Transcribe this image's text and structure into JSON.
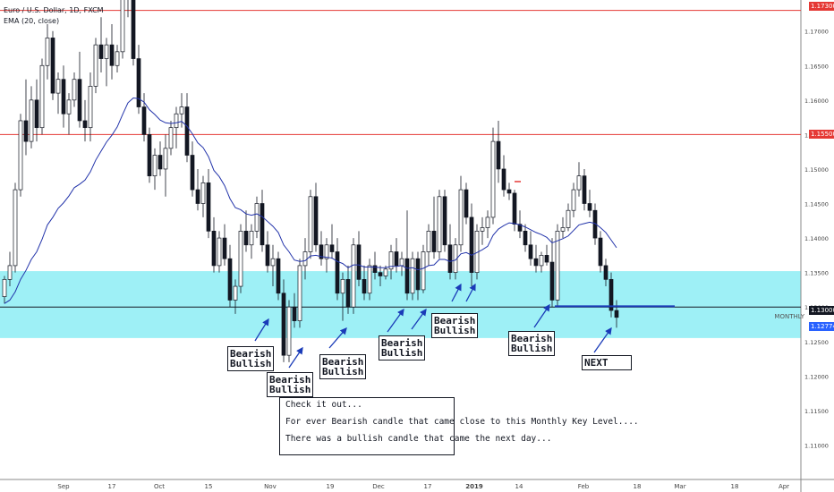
{
  "chart_data": {
    "type": "candlestick",
    "title": "Euro / U.S. Dollar, 1D, FXCM",
    "indicator_label": "EMA (20, close)",
    "level_label": "MONTHLY",
    "ylim": [
      1.105,
      1.1745
    ],
    "y_ticks": [
      "1.17000",
      "1.16500",
      "1.16000",
      "1.15500",
      "1.15000",
      "1.14500",
      "1.14000",
      "1.13500",
      "1.13000",
      "1.12500",
      "1.12000",
      "1.11500",
      "1.11000"
    ],
    "x_ticks": [
      "Sep",
      "17",
      "Oct",
      "15",
      "Nov",
      "19",
      "Dec",
      "17",
      "2019",
      "14",
      "Feb",
      "18",
      "Mar",
      "18",
      "Apr"
    ],
    "tags": [
      "1.17300",
      "1.15500",
      "1.13000",
      "1.12774"
    ],
    "horizontal_levels": [
      {
        "name": "upper-resistance",
        "value": 1.173,
        "color": "#e53935"
      },
      {
        "name": "mid-resistance",
        "value": 1.155,
        "color": "#e53935"
      },
      {
        "name": "monthly",
        "value": 1.13,
        "color": "#131722"
      }
    ],
    "zone": {
      "low": 1.1255,
      "high": 1.1352,
      "color": "#5ee6f0"
    },
    "colors": {
      "bull": "#ffffff",
      "bear": "#131722",
      "ema": "#2233aa",
      "arrow": "#1a3bb8"
    },
    "candles": [
      {
        "o": 1.1315,
        "h": 1.1345,
        "l": 1.1305,
        "c": 1.134
      },
      {
        "o": 1.134,
        "h": 1.138,
        "l": 1.133,
        "c": 1.136
      },
      {
        "o": 1.136,
        "h": 1.148,
        "l": 1.135,
        "c": 1.147
      },
      {
        "o": 1.147,
        "h": 1.158,
        "l": 1.146,
        "c": 1.157
      },
      {
        "o": 1.157,
        "h": 1.163,
        "l": 1.152,
        "c": 1.154
      },
      {
        "o": 1.154,
        "h": 1.162,
        "l": 1.153,
        "c": 1.16
      },
      {
        "o": 1.16,
        "h": 1.163,
        "l": 1.154,
        "c": 1.156
      },
      {
        "o": 1.156,
        "h": 1.166,
        "l": 1.155,
        "c": 1.165
      },
      {
        "o": 1.165,
        "h": 1.171,
        "l": 1.163,
        "c": 1.169
      },
      {
        "o": 1.169,
        "h": 1.17,
        "l": 1.16,
        "c": 1.161
      },
      {
        "o": 1.161,
        "h": 1.164,
        "l": 1.158,
        "c": 1.163
      },
      {
        "o": 1.163,
        "h": 1.165,
        "l": 1.156,
        "c": 1.158
      },
      {
        "o": 1.158,
        "h": 1.161,
        "l": 1.155,
        "c": 1.16
      },
      {
        "o": 1.16,
        "h": 1.164,
        "l": 1.159,
        "c": 1.163
      },
      {
        "o": 1.163,
        "h": 1.167,
        "l": 1.156,
        "c": 1.157
      },
      {
        "o": 1.157,
        "h": 1.16,
        "l": 1.154,
        "c": 1.156
      },
      {
        "o": 1.156,
        "h": 1.164,
        "l": 1.154,
        "c": 1.162
      },
      {
        "o": 1.162,
        "h": 1.169,
        "l": 1.161,
        "c": 1.168
      },
      {
        "o": 1.168,
        "h": 1.172,
        "l": 1.164,
        "c": 1.166
      },
      {
        "o": 1.166,
        "h": 1.169,
        "l": 1.162,
        "c": 1.168
      },
      {
        "o": 1.168,
        "h": 1.171,
        "l": 1.163,
        "c": 1.165
      },
      {
        "o": 1.165,
        "h": 1.168,
        "l": 1.164,
        "c": 1.167
      },
      {
        "o": 1.167,
        "h": 1.176,
        "l": 1.166,
        "c": 1.175
      },
      {
        "o": 1.175,
        "h": 1.18,
        "l": 1.172,
        "c": 1.176
      },
      {
        "o": 1.176,
        "h": 1.177,
        "l": 1.165,
        "c": 1.166
      },
      {
        "o": 1.166,
        "h": 1.168,
        "l": 1.158,
        "c": 1.159
      },
      {
        "o": 1.159,
        "h": 1.161,
        "l": 1.154,
        "c": 1.155
      },
      {
        "o": 1.155,
        "h": 1.156,
        "l": 1.148,
        "c": 1.149
      },
      {
        "o": 1.149,
        "h": 1.153,
        "l": 1.147,
        "c": 1.152
      },
      {
        "o": 1.152,
        "h": 1.154,
        "l": 1.149,
        "c": 1.15
      },
      {
        "o": 1.15,
        "h": 1.155,
        "l": 1.146,
        "c": 1.153
      },
      {
        "o": 1.153,
        "h": 1.157,
        "l": 1.152,
        "c": 1.156
      },
      {
        "o": 1.156,
        "h": 1.159,
        "l": 1.153,
        "c": 1.158
      },
      {
        "o": 1.158,
        "h": 1.161,
        "l": 1.156,
        "c": 1.159
      },
      {
        "o": 1.159,
        "h": 1.161,
        "l": 1.151,
        "c": 1.152
      },
      {
        "o": 1.152,
        "h": 1.154,
        "l": 1.146,
        "c": 1.147
      },
      {
        "o": 1.147,
        "h": 1.15,
        "l": 1.144,
        "c": 1.145
      },
      {
        "o": 1.145,
        "h": 1.149,
        "l": 1.143,
        "c": 1.148
      },
      {
        "o": 1.148,
        "h": 1.15,
        "l": 1.14,
        "c": 1.141
      },
      {
        "o": 1.141,
        "h": 1.143,
        "l": 1.135,
        "c": 1.136
      },
      {
        "o": 1.136,
        "h": 1.141,
        "l": 1.135,
        "c": 1.14
      },
      {
        "o": 1.14,
        "h": 1.142,
        "l": 1.136,
        "c": 1.137
      },
      {
        "o": 1.137,
        "h": 1.139,
        "l": 1.13,
        "c": 1.131
      },
      {
        "o": 1.131,
        "h": 1.134,
        "l": 1.129,
        "c": 1.133
      },
      {
        "o": 1.133,
        "h": 1.142,
        "l": 1.132,
        "c": 1.141
      },
      {
        "o": 1.141,
        "h": 1.144,
        "l": 1.138,
        "c": 1.139
      },
      {
        "o": 1.139,
        "h": 1.142,
        "l": 1.137,
        "c": 1.141
      },
      {
        "o": 1.141,
        "h": 1.146,
        "l": 1.14,
        "c": 1.145
      },
      {
        "o": 1.145,
        "h": 1.147,
        "l": 1.138,
        "c": 1.139
      },
      {
        "o": 1.139,
        "h": 1.141,
        "l": 1.135,
        "c": 1.136
      },
      {
        "o": 1.136,
        "h": 1.139,
        "l": 1.133,
        "c": 1.137
      },
      {
        "o": 1.137,
        "h": 1.138,
        "l": 1.131,
        "c": 1.132
      },
      {
        "o": 1.132,
        "h": 1.134,
        "l": 1.122,
        "c": 1.123
      },
      {
        "o": 1.123,
        "h": 1.131,
        "l": 1.122,
        "c": 1.13
      },
      {
        "o": 1.13,
        "h": 1.132,
        "l": 1.127,
        "c": 1.128
      },
      {
        "o": 1.128,
        "h": 1.137,
        "l": 1.127,
        "c": 1.136
      },
      {
        "o": 1.136,
        "h": 1.14,
        "l": 1.134,
        "c": 1.138
      },
      {
        "o": 1.138,
        "h": 1.147,
        "l": 1.137,
        "c": 1.146
      },
      {
        "o": 1.146,
        "h": 1.148,
        "l": 1.138,
        "c": 1.139
      },
      {
        "o": 1.139,
        "h": 1.141,
        "l": 1.136,
        "c": 1.137
      },
      {
        "o": 1.137,
        "h": 1.14,
        "l": 1.135,
        "c": 1.139
      },
      {
        "o": 1.139,
        "h": 1.142,
        "l": 1.137,
        "c": 1.138
      },
      {
        "o": 1.138,
        "h": 1.14,
        "l": 1.131,
        "c": 1.132
      },
      {
        "o": 1.132,
        "h": 1.135,
        "l": 1.128,
        "c": 1.134
      },
      {
        "o": 1.134,
        "h": 1.136,
        "l": 1.129,
        "c": 1.13
      },
      {
        "o": 1.13,
        "h": 1.14,
        "l": 1.129,
        "c": 1.139
      },
      {
        "o": 1.139,
        "h": 1.141,
        "l": 1.133,
        "c": 1.134
      },
      {
        "o": 1.134,
        "h": 1.136,
        "l": 1.131,
        "c": 1.132
      },
      {
        "o": 1.132,
        "h": 1.137,
        "l": 1.131,
        "c": 1.136
      },
      {
        "o": 1.136,
        "h": 1.138,
        "l": 1.134,
        "c": 1.135
      },
      {
        "o": 1.135,
        "h": 1.136,
        "l": 1.133,
        "c": 1.1345
      },
      {
        "o": 1.1345,
        "h": 1.136,
        "l": 1.134,
        "c": 1.1355
      },
      {
        "o": 1.1355,
        "h": 1.139,
        "l": 1.134,
        "c": 1.138
      },
      {
        "o": 1.138,
        "h": 1.14,
        "l": 1.135,
        "c": 1.136
      },
      {
        "o": 1.136,
        "h": 1.138,
        "l": 1.1345,
        "c": 1.137
      },
      {
        "o": 1.137,
        "h": 1.144,
        "l": 1.131,
        "c": 1.132
      },
      {
        "o": 1.132,
        "h": 1.138,
        "l": 1.131,
        "c": 1.137
      },
      {
        "o": 1.137,
        "h": 1.138,
        "l": 1.131,
        "c": 1.1325
      },
      {
        "o": 1.1325,
        "h": 1.139,
        "l": 1.132,
        "c": 1.138
      },
      {
        "o": 1.138,
        "h": 1.142,
        "l": 1.136,
        "c": 1.141
      },
      {
        "o": 1.141,
        "h": 1.146,
        "l": 1.137,
        "c": 1.138
      },
      {
        "o": 1.138,
        "h": 1.147,
        "l": 1.137,
        "c": 1.146
      },
      {
        "o": 1.146,
        "h": 1.147,
        "l": 1.138,
        "c": 1.139
      },
      {
        "o": 1.139,
        "h": 1.142,
        "l": 1.134,
        "c": 1.135
      },
      {
        "o": 1.135,
        "h": 1.14,
        "l": 1.134,
        "c": 1.139
      },
      {
        "o": 1.139,
        "h": 1.149,
        "l": 1.138,
        "c": 1.147
      },
      {
        "o": 1.147,
        "h": 1.148,
        "l": 1.142,
        "c": 1.143
      },
      {
        "o": 1.143,
        "h": 1.145,
        "l": 1.133,
        "c": 1.135
      },
      {
        "o": 1.135,
        "h": 1.142,
        "l": 1.134,
        "c": 1.141
      },
      {
        "o": 1.141,
        "h": 1.143,
        "l": 1.139,
        "c": 1.1415
      },
      {
        "o": 1.1415,
        "h": 1.144,
        "l": 1.14,
        "c": 1.143
      },
      {
        "o": 1.143,
        "h": 1.156,
        "l": 1.142,
        "c": 1.154
      },
      {
        "o": 1.154,
        "h": 1.157,
        "l": 1.148,
        "c": 1.15
      },
      {
        "o": 1.15,
        "h": 1.152,
        "l": 1.146,
        "c": 1.147
      },
      {
        "o": 1.147,
        "h": 1.148,
        "l": 1.1455,
        "c": 1.1465
      },
      {
        "o": 1.1465,
        "h": 1.147,
        "l": 1.141,
        "c": 1.142
      },
      {
        "o": 1.142,
        "h": 1.144,
        "l": 1.14,
        "c": 1.141
      },
      {
        "o": 1.141,
        "h": 1.142,
        "l": 1.138,
        "c": 1.139
      },
      {
        "o": 1.139,
        "h": 1.141,
        "l": 1.136,
        "c": 1.137
      },
      {
        "o": 1.137,
        "h": 1.139,
        "l": 1.135,
        "c": 1.136
      },
      {
        "o": 1.136,
        "h": 1.138,
        "l": 1.135,
        "c": 1.1375
      },
      {
        "o": 1.1375,
        "h": 1.139,
        "l": 1.136,
        "c": 1.1365
      },
      {
        "o": 1.1365,
        "h": 1.14,
        "l": 1.13,
        "c": 1.131
      },
      {
        "o": 1.131,
        "h": 1.142,
        "l": 1.13,
        "c": 1.141
      },
      {
        "o": 1.141,
        "h": 1.143,
        "l": 1.14,
        "c": 1.1415
      },
      {
        "o": 1.1415,
        "h": 1.145,
        "l": 1.141,
        "c": 1.144
      },
      {
        "o": 1.144,
        "h": 1.148,
        "l": 1.143,
        "c": 1.147
      },
      {
        "o": 1.147,
        "h": 1.151,
        "l": 1.146,
        "c": 1.149
      },
      {
        "o": 1.149,
        "h": 1.15,
        "l": 1.144,
        "c": 1.145
      },
      {
        "o": 1.145,
        "h": 1.147,
        "l": 1.143,
        "c": 1.144
      },
      {
        "o": 1.144,
        "h": 1.145,
        "l": 1.139,
        "c": 1.14
      },
      {
        "o": 1.14,
        "h": 1.141,
        "l": 1.135,
        "c": 1.136
      },
      {
        "o": 1.136,
        "h": 1.137,
        "l": 1.133,
        "c": 1.134
      },
      {
        "o": 1.134,
        "h": 1.135,
        "l": 1.1285,
        "c": 1.1295
      },
      {
        "o": 1.1295,
        "h": 1.131,
        "l": 1.127,
        "c": 1.1285
      }
    ],
    "ema_20": [
      1.1305,
      1.131,
      1.1322,
      1.134,
      1.1353,
      1.1369,
      1.138,
      1.1398,
      1.1419,
      1.143,
      1.1443,
      1.1451,
      1.1461,
      1.1473,
      1.1478,
      1.1484,
      1.1496,
      1.1513,
      1.1526,
      1.1539,
      1.1549,
      1.1561,
      1.1579,
      1.1596,
      1.1603,
      1.1602,
      1.1597,
      1.1586,
      1.1579,
      1.1571,
      1.1567,
      1.1566,
      1.1567,
      1.1569,
      1.1562,
      1.1551,
      1.1538,
      1.1531,
      1.1518,
      1.1498,
      1.1489,
      1.1476,
      1.1457,
      1.1444,
      1.1441,
      1.1435,
      1.1433,
      1.1435,
      1.1431,
      1.1424,
      1.1417,
      1.1408,
      1.139,
      1.138,
      1.1368,
      1.1366,
      1.1367,
      1.1374,
      1.1375,
      1.1373,
      1.1372,
      1.1371,
      1.1366,
      1.1363,
      1.1357,
      1.1361,
      1.1361,
      1.1358,
      1.1358,
      1.1358,
      1.1357,
      1.1357,
      1.1359,
      1.1359,
      1.136,
      1.1356,
      1.1357,
      1.1354,
      1.1356,
      1.136,
      1.1361,
      1.1369,
      1.1369,
      1.1366,
      1.1368,
      1.1377,
      1.1379,
      1.1375,
      1.1379,
      1.1383,
      1.1388,
      1.1404,
      1.1413,
      1.1418,
      1.1422,
      1.1421,
      1.1419,
      1.1416,
      1.1412,
      1.1408,
      1.1405,
      1.1401,
      1.1393,
      1.1396,
      1.1399,
      1.1403,
      1.1411,
      1.1419,
      1.1421,
      1.1423,
      1.1421,
      1.1415,
      1.1408,
      1.1397,
      1.1386
    ],
    "annotations": [
      {
        "line1": "Bearish",
        "line2": "Bullish"
      },
      {
        "line1": "Bearish",
        "line2": "Bullish"
      },
      {
        "line1": "Bearish",
        "line2": "Bullish"
      },
      {
        "line1": "Bearish",
        "line2": "Bullish"
      },
      {
        "line1": "Bearish",
        "line2": "Bullish"
      },
      {
        "line1": "Bearish",
        "line2": "Bullish"
      },
      {
        "line1": "NEXT"
      }
    ],
    "commentary": [
      "Check it out...",
      "For ever Bearish candle that came close to this Monthly Key Level....",
      "There was a bullish candle that came the next day..."
    ]
  }
}
